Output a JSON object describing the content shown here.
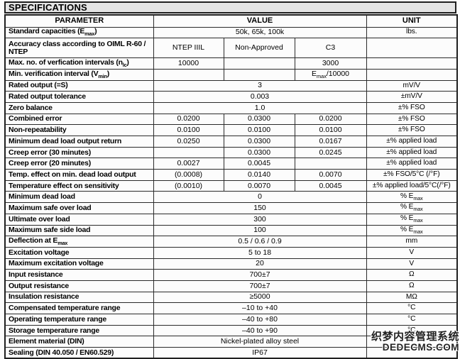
{
  "title": "SPECIFICATIONS",
  "columns": {
    "parameter": "PARAMETER",
    "value": "VALUE",
    "unit": "UNIT"
  },
  "rows": [
    {
      "param": "Standard capacities (E~max~)",
      "values": [
        "50k, 65k, 100k"
      ],
      "unit": "lbs."
    },
    {
      "param": "Accuracy class according to OIML R-60 / NTEP",
      "values": [
        "NTEP IIIL",
        "Non-Approved",
        "C3"
      ],
      "unit": "",
      "tall": true
    },
    {
      "param": "Max. no. of verfication intervals (n~lc~)",
      "values": [
        "10000",
        "",
        "3000"
      ],
      "unit": ""
    },
    {
      "param": "Min. verification interval (V~min~)",
      "values": [
        "",
        "",
        "E~max~/10000"
      ],
      "unit": ""
    },
    {
      "param": "Rated output (=S)",
      "values": [
        "3"
      ],
      "unit": "mV/V"
    },
    {
      "param": "Rated output tolerance",
      "values": [
        "0.003"
      ],
      "unit": "±mV/V"
    },
    {
      "param": "Zero balance",
      "values": [
        "1.0"
      ],
      "unit": "±% FSO"
    },
    {
      "param": "Combined error",
      "values": [
        "0.0200",
        "0.0300",
        "0.0200"
      ],
      "unit": "±% FSO"
    },
    {
      "param": "Non-repeatability",
      "values": [
        "0.0100",
        "0.0100",
        "0.0100"
      ],
      "unit": "±% FSO"
    },
    {
      "param": "Minimum dead load output return",
      "values": [
        "0.0250",
        "0.0300",
        "0.0167"
      ],
      "unit": "±% applied load"
    },
    {
      "param": "Creep error (30 minutes)",
      "values": [
        "",
        "0.0300",
        "0.0245"
      ],
      "unit": "±% applied load"
    },
    {
      "param": "Creep error (20 minutes)",
      "values": [
        "0.0027",
        "0.0045",
        ""
      ],
      "unit": "±% applied load"
    },
    {
      "param": "Temp. effect on min. dead load output",
      "values": [
        "(0.0008)",
        "0.0140",
        "0.0070"
      ],
      "unit": "±% FSO/5°C (/°F)"
    },
    {
      "param": "Temperature effect on sensitivity",
      "values": [
        "(0.0010)",
        "0.0070",
        "0.0045"
      ],
      "unit": "±% applied load/5°C(/°F)"
    },
    {
      "param": "Minimum dead load",
      "values": [
        "0"
      ],
      "unit": "% E~max~"
    },
    {
      "param": "Maximum safe over load",
      "values": [
        "150"
      ],
      "unit": "% E~max~"
    },
    {
      "param": "Ultimate over load",
      "values": [
        "300"
      ],
      "unit": "% E~max~"
    },
    {
      "param": "Maximum safe side load",
      "values": [
        "100"
      ],
      "unit": "% E~max~"
    },
    {
      "param": "Deflection at E~max~",
      "values": [
        "0.5 / 0.6 / 0.9"
      ],
      "unit": "mm"
    },
    {
      "param": "Excitation voltage",
      "values": [
        "5 to 18"
      ],
      "unit": "V"
    },
    {
      "param": "Maximum excitation voltage",
      "values": [
        "20"
      ],
      "unit": "V"
    },
    {
      "param": "Input resistance",
      "values": [
        "700±7"
      ],
      "unit": "Ω"
    },
    {
      "param": "Output resistance",
      "values": [
        "700±7"
      ],
      "unit": "Ω"
    },
    {
      "param": "Insulation resistance",
      "values": [
        "≥5000"
      ],
      "unit": "MΩ"
    },
    {
      "param": "Compensated temperature range",
      "values": [
        "–10 to +40"
      ],
      "unit": "°C"
    },
    {
      "param": "Operating temperature range",
      "values": [
        "–40 to +80"
      ],
      "unit": "°C"
    },
    {
      "param": "Storage temperature range",
      "values": [
        "–40 to +90"
      ],
      "unit": "°C"
    },
    {
      "param": "Element material (DIN)",
      "values": [
        "Nickel-plated alloy steel"
      ],
      "unit": ""
    },
    {
      "param": "Sealing (DIN 40.050 / EN60.529)",
      "values": [
        "IP67"
      ],
      "unit": ""
    }
  ],
  "watermark": {
    "line1": "织梦内容管理系统",
    "line2": "DEDECMS.COM"
  },
  "colors": {
    "title_bar_bg": "#e4e4e4",
    "border": "#2a2a2a",
    "watermark_text": "#222222"
  }
}
